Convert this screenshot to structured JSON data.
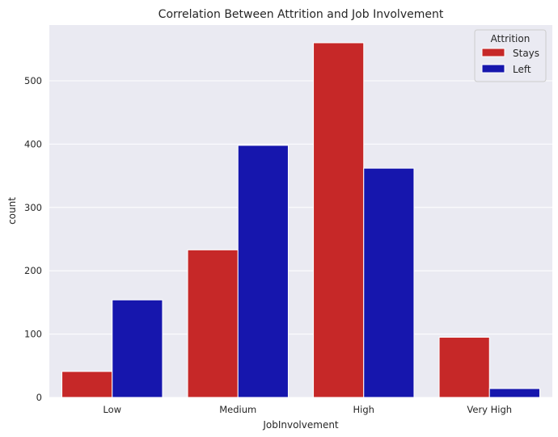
{
  "chart_data": {
    "type": "bar",
    "title": "Correlation Between Attrition and Job Involvement",
    "xlabel": "JobInvolvement",
    "ylabel": "count",
    "categories": [
      "Low",
      "Medium",
      "High",
      "Very High"
    ],
    "series": [
      {
        "name": "Stays",
        "values": [
          41,
          233,
          560,
          95
        ],
        "color": "#c62828"
      },
      {
        "name": "Left",
        "values": [
          154,
          398,
          362,
          14
        ],
        "color": "#1616ad"
      }
    ],
    "ylim": [
      0,
      588
    ],
    "yticks": [
      0,
      100,
      200,
      300,
      400,
      500
    ],
    "grid": true,
    "background": "#eaeaf2",
    "legend": {
      "title": "Attrition",
      "placement": "top-right"
    }
  }
}
